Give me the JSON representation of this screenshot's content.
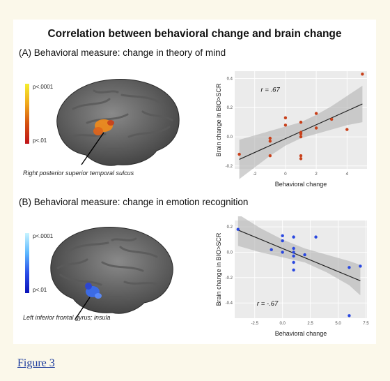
{
  "figure_title": "Correlation between behavioral change and brain change",
  "figure_link": "Figure 3",
  "panels": [
    {
      "section_title": "(A) Behavioral measure: change in theory of mind",
      "colorbar": {
        "top_label": "p<.0001",
        "bottom_label": "p<.01",
        "gradient": [
          "#f5ee2e",
          "#f0a81c",
          "#d45010",
          "#c0141a"
        ]
      },
      "region_label": "Right posterior superior temporal sulcus",
      "blob_colors": [
        "#f08a1a",
        "#e0641a",
        "#c8401a"
      ],
      "r_label": "r = .67"
    },
    {
      "section_title": "(B) Behavioral measure: change in emotion recognition",
      "colorbar": {
        "top_label": "p<.0001",
        "bottom_label": "p<.01",
        "gradient": [
          "#c8f4ff",
          "#5cb8ff",
          "#2a4ee8",
          "#0a12b8"
        ]
      },
      "region_label": "Left inferior frontal gyrus; insula",
      "blob_colors": [
        "#3a6cf0",
        "#2a44d8",
        "#5a8cff"
      ],
      "r_label": "r = -.67"
    }
  ],
  "chart_data": [
    {
      "type": "scatter",
      "title": "",
      "xlabel": "Behavioral change",
      "ylabel": "Brain change in BIO>SCR",
      "xlim": [
        -3.3,
        5.3
      ],
      "ylim": [
        -0.22,
        0.45
      ],
      "xticks": [
        -2,
        0,
        2,
        4
      ],
      "xtick_labels": [
        "-2",
        "0",
        "2",
        "4"
      ],
      "yticks": [
        -0.2,
        0.0,
        0.2,
        0.4
      ],
      "ytick_labels": [
        "-0.2",
        "0.0",
        "0.2",
        "0.4"
      ],
      "grid": true,
      "point_color": "#c8401a",
      "series": [
        {
          "x": [
            -3.0,
            -1.0,
            -1.0,
            -1.0,
            0.0,
            0.0,
            1.0,
            1.0,
            1.0,
            1.0,
            1.0,
            2.0,
            2.0,
            3.0,
            4.0,
            5.0,
            1.0
          ],
          "y": [
            -0.12,
            -0.13,
            -0.01,
            -0.03,
            0.13,
            0.08,
            0.1,
            0.03,
            -0.13,
            -0.15,
            0.0,
            0.16,
            0.06,
            0.12,
            0.05,
            0.43,
            0.02
          ]
        }
      ],
      "fit_line": {
        "x": [
          -3.0,
          5.0
        ],
        "y": [
          -0.155,
          0.225
        ]
      },
      "confidence_band": {
        "x": [
          -3.0,
          -2.0,
          -1.0,
          0.0,
          1.0,
          2.0,
          3.0,
          4.0,
          5.0
        ],
        "upper": [
          -0.02,
          0.01,
          0.04,
          0.07,
          0.1,
          0.15,
          0.21,
          0.28,
          0.35
        ],
        "lower": [
          -0.29,
          -0.21,
          -0.13,
          -0.06,
          -0.01,
          0.02,
          0.05,
          0.08,
          0.1
        ]
      }
    },
    {
      "type": "scatter",
      "title": "",
      "xlabel": "Behavioral change",
      "ylabel": "Brain change in BIO>SCR",
      "xlim": [
        -4.3,
        7.6
      ],
      "ylim": [
        -0.52,
        0.25
      ],
      "xticks": [
        -2.5,
        0.0,
        2.5,
        5.0,
        7.5
      ],
      "xtick_labels": [
        "-2.5",
        "0.0",
        "2.5",
        "5.0",
        "7.5"
      ],
      "yticks": [
        -0.4,
        -0.2,
        0.0,
        0.2
      ],
      "ytick_labels": [
        "-0.4",
        "-0.2",
        "0.0",
        "0.2"
      ],
      "grid": true,
      "point_color": "#2a48e0",
      "series": [
        {
          "x": [
            -4.0,
            -1.0,
            0.0,
            0.0,
            0.0,
            1.0,
            1.0,
            1.0,
            1.0,
            1.0,
            1.0,
            2.0,
            3.0,
            6.0,
            6.0,
            7.0
          ],
          "y": [
            0.18,
            0.02,
            0.13,
            0.09,
            0.0,
            0.12,
            0.03,
            0.0,
            -0.03,
            -0.08,
            -0.14,
            -0.02,
            0.12,
            -0.12,
            -0.5,
            -0.11
          ]
        }
      ],
      "fit_line": {
        "x": [
          -4.0,
          7.0
        ],
        "y": [
          0.175,
          -0.225
        ]
      },
      "confidence_band": {
        "x": [
          -4.0,
          -2.0,
          0.0,
          2.0,
          4.0,
          6.0,
          7.0
        ],
        "upper": [
          0.3,
          0.19,
          0.1,
          0.03,
          -0.02,
          -0.07,
          -0.1
        ],
        "lower": [
          0.05,
          0.0,
          -0.04,
          -0.08,
          -0.16,
          -0.26,
          -0.34
        ]
      }
    }
  ]
}
